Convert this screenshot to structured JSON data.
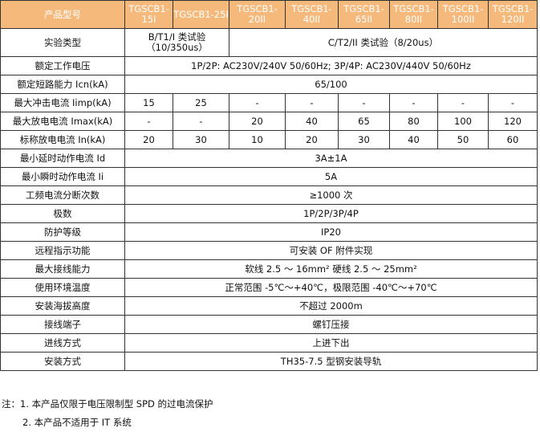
{
  "header": {
    "label": "产品型号",
    "models": [
      "TGSCB1-15I",
      "TGSCB1-25I",
      "TGSCB1-20II",
      "TGSCB1-40II",
      "TGSCB1-65II",
      "TGSCB1-80II",
      "TGSCB1-100II",
      "TGSCB1-120II"
    ]
  },
  "test_type": {
    "label": "实验类型",
    "class1": "B/T1/I 类试验（10/350us）",
    "class2": "C/T2/II 类试验（8/20us）"
  },
  "per_model_rows": [
    {
      "label": "最大冲击电流 Iimp(kA)",
      "values": [
        "15",
        "25",
        "-",
        "-",
        "-",
        "-",
        "-",
        "-"
      ]
    },
    {
      "label": "最大放电电流 Imax(kA)",
      "values": [
        "-",
        "-",
        "20",
        "40",
        "65",
        "80",
        "100",
        "120"
      ]
    },
    {
      "label": "标称放电电流 In(kA)",
      "values": [
        "20",
        "30",
        "10",
        "20",
        "30",
        "40",
        "50",
        "60"
      ]
    }
  ],
  "voltage": {
    "label": "额定工作电压",
    "value": "1P/2P: AC230V/240V 50/60Hz; 3P/4P: AC230V/440V 50/60Hz"
  },
  "short_circuit": {
    "label": "额定短路能力 Icn(kA)",
    "value": "65/100"
  },
  "spanning_rows": [
    {
      "label": "最小延时动作电流 Id",
      "value": "3A±1A"
    },
    {
      "label": "最小瞬时动作电流 Ii",
      "value": "5A"
    },
    {
      "label": "工频电流分断次数",
      "value": "≥1000 次"
    },
    {
      "label": "极数",
      "value": "1P/2P/3P/4P"
    },
    {
      "label": "防护等级",
      "value": "IP20"
    },
    {
      "label": "远程指示功能",
      "value": "可安装 OF 附件实现"
    },
    {
      "label": "最大接线能力",
      "value": "软线 2.5 ～ 16mm² 硬线 2.5 ～ 25mm²"
    },
    {
      "label": "使用环境温度",
      "value": "正常范围 -5℃～+40℃，极限范围 -40℃～+70℃"
    },
    {
      "label": "安装海拔高度",
      "value": "不超过 2000m"
    },
    {
      "label": "接线端子",
      "value": "螺钉压接"
    },
    {
      "label": "进线方式",
      "value": "上进下出"
    },
    {
      "label": "安装方式",
      "value": "TH35-7.5 型钢安装导轨"
    }
  ],
  "notes": [
    "注：1. 本产品仅限于电压限制型 SPD 的过电流保护",
    "2. 本产品不适用于 IT 系统"
  ],
  "colors": {
    "header_bg": "#F5B97C"
  }
}
